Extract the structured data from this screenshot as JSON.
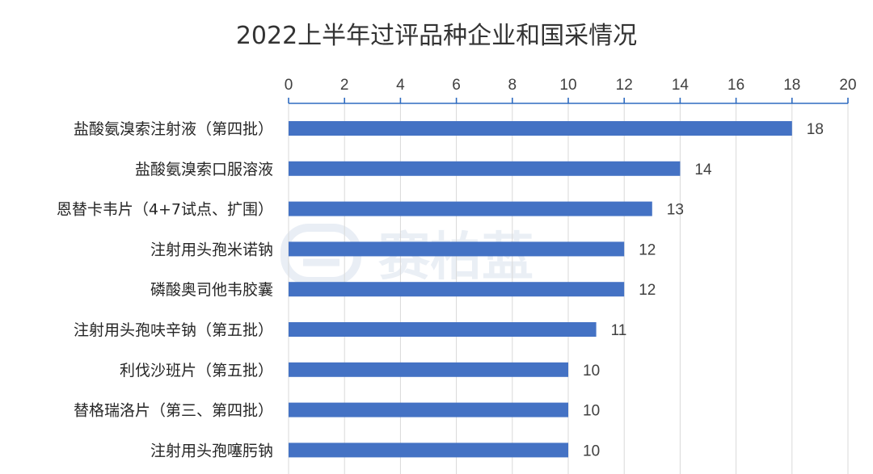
{
  "chart_data": {
    "type": "bar",
    "orientation": "horizontal",
    "title": "2022上半年过评品种企业和国采情况",
    "categories": [
      "盐酸氨溴索注射液（第四批）",
      "盐酸氨溴索口服溶液",
      "恩替卡韦片（4+7试点、扩围）",
      "注射用头孢米诺钠",
      "磷酸奥司他韦胶囊",
      "注射用头孢呋辛钠（第五批）",
      "利伐沙班片（第五批）",
      "替格瑞洛片（第三、第四批）",
      "注射用头孢噻肟钠"
    ],
    "values": [
      18,
      14,
      13,
      12,
      12,
      11,
      10,
      10,
      10
    ],
    "xlim": [
      0,
      20
    ],
    "xticks": [
      0,
      2,
      4,
      6,
      8,
      10,
      12,
      14,
      16,
      18,
      20
    ],
    "x_axis_position": "top",
    "grid": true,
    "legend": "none",
    "bar_color": "#4472c4",
    "axis_color": "#2e6bc0"
  },
  "watermark": {
    "text": "赛柏蓝",
    "color": "#5b7fb5"
  }
}
